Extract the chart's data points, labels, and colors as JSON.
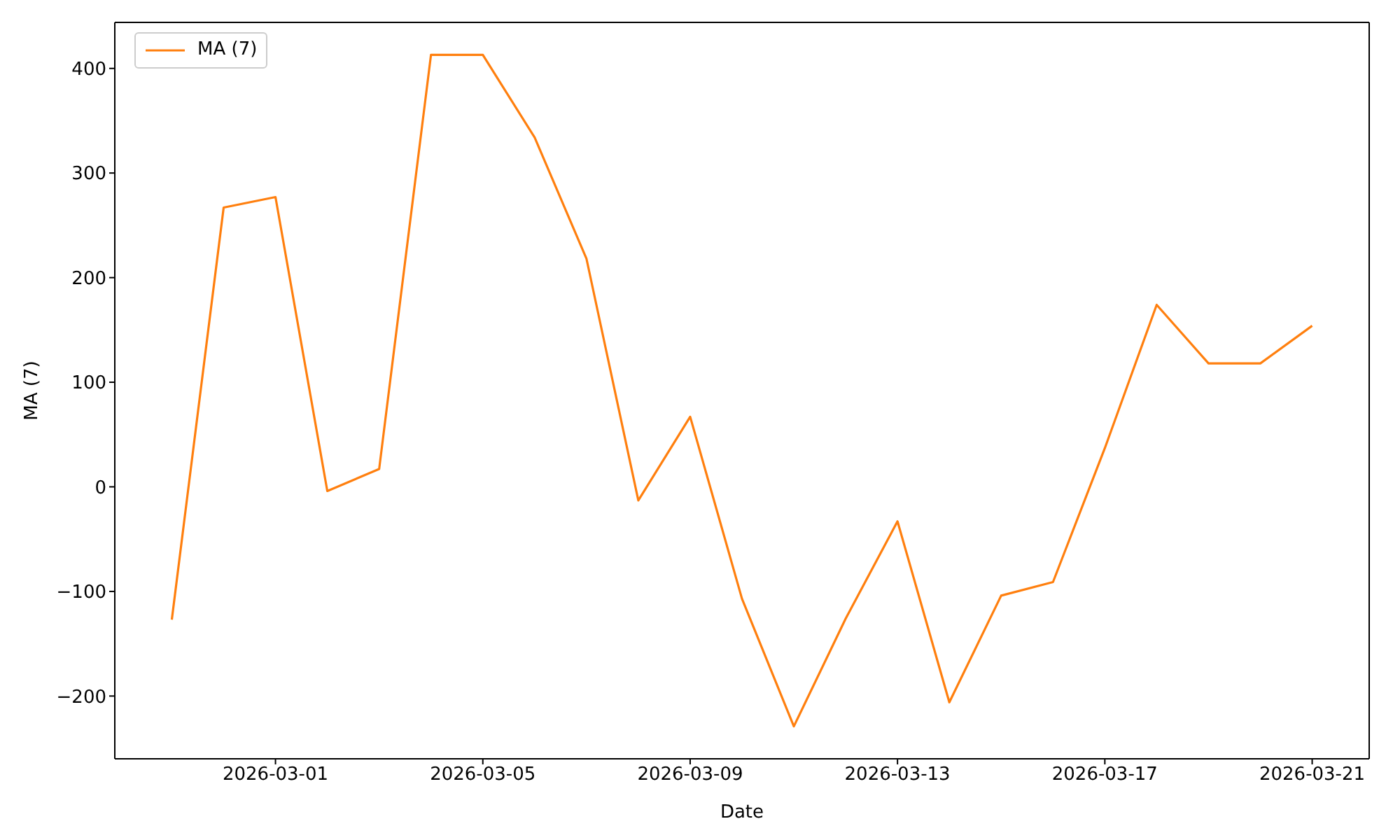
{
  "chart_data": {
    "type": "line",
    "xlabel": "Date",
    "ylabel": "MA (7)",
    "x": [
      "2026-02-27",
      "2026-02-28",
      "2026-03-01",
      "2026-03-02",
      "2026-03-03",
      "2026-03-04",
      "2026-03-05",
      "2026-03-06",
      "2026-03-07",
      "2026-03-08",
      "2026-03-09",
      "2026-03-10",
      "2026-03-11",
      "2026-03-12",
      "2026-03-13",
      "2026-03-14",
      "2026-03-15",
      "2026-03-16",
      "2026-03-17",
      "2026-03-18",
      "2026-03-19",
      "2026-03-20",
      "2026-03-21"
    ],
    "series": [
      {
        "name": "MA (7)",
        "color": "#ff7f0e",
        "values": [
          -127,
          267,
          277,
          -4,
          17,
          413,
          413,
          334,
          218,
          -13,
          67,
          -107,
          -229,
          -126,
          -33,
          -206,
          -104,
          -91,
          37,
          174,
          118,
          118,
          154
        ]
      }
    ],
    "xlim": [
      "2026-02-25T21:36",
      "2026-03-22T02:24"
    ],
    "xticks": [
      "2026-03-01",
      "2026-03-05",
      "2026-03-09",
      "2026-03-13",
      "2026-03-17",
      "2026-03-21"
    ],
    "ylim": [
      -260,
      444
    ],
    "yticks": [
      -200,
      -100,
      0,
      100,
      200,
      300,
      400
    ],
    "grid": false,
    "legend": "top left",
    "marker": "none",
    "line_style": "solid"
  }
}
